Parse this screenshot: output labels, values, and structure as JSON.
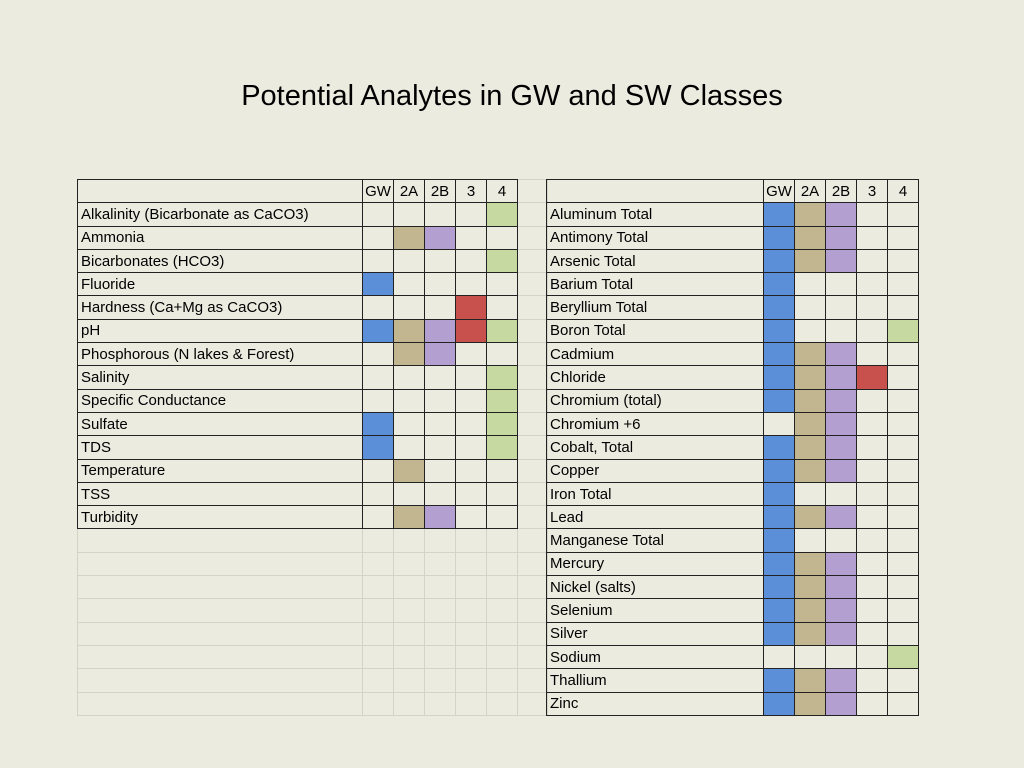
{
  "title": "Potential Analytes in GW and SW Classes",
  "columns": [
    "GW",
    "2A",
    "2B",
    "3",
    "4"
  ],
  "colors": {
    "GW": "#5b8fd8",
    "2A": "#c1b68f",
    "2B": "#b3a0d0",
    "3": "#c9514d",
    "4": "#c6d9a0"
  },
  "left_table": {
    "rows": [
      {
        "name": "Alkalinity (Bicarbonate as CaCO3)",
        "classes": [
          "4"
        ]
      },
      {
        "name": "Ammonia",
        "classes": [
          "2A",
          "2B"
        ]
      },
      {
        "name": "Bicarbonates (HCO3)",
        "classes": [
          "4"
        ]
      },
      {
        "name": "Fluoride",
        "classes": [
          "GW"
        ]
      },
      {
        "name": "Hardness (Ca+Mg as CaCO3)",
        "classes": [
          "3"
        ]
      },
      {
        "name": "pH",
        "classes": [
          "GW",
          "2A",
          "2B",
          "3",
          "4"
        ]
      },
      {
        "name": "Phosphorous (N lakes & Forest)",
        "classes": [
          "2A",
          "2B"
        ]
      },
      {
        "name": "Salinity",
        "classes": [
          "4"
        ]
      },
      {
        "name": "Specific Conductance",
        "classes": [
          "4"
        ]
      },
      {
        "name": "Sulfate",
        "classes": [
          "GW",
          "4"
        ]
      },
      {
        "name": "TDS",
        "classes": [
          "GW",
          "4"
        ]
      },
      {
        "name": "Temperature",
        "classes": [
          "2A"
        ]
      },
      {
        "name": "TSS",
        "classes": []
      },
      {
        "name": "Turbidity",
        "classes": [
          "2A",
          "2B"
        ]
      }
    ]
  },
  "right_table": {
    "rows": [
      {
        "name": "Aluminum Total",
        "classes": [
          "GW",
          "2A",
          "2B"
        ]
      },
      {
        "name": "Antimony Total",
        "classes": [
          "GW",
          "2A",
          "2B"
        ]
      },
      {
        "name": "Arsenic Total",
        "classes": [
          "GW",
          "2A",
          "2B"
        ]
      },
      {
        "name": "Barium Total",
        "classes": [
          "GW"
        ]
      },
      {
        "name": "Beryllium Total",
        "classes": [
          "GW"
        ]
      },
      {
        "name": "Boron Total",
        "classes": [
          "GW",
          "4"
        ]
      },
      {
        "name": "Cadmium",
        "classes": [
          "GW",
          "2A",
          "2B"
        ]
      },
      {
        "name": "Chloride",
        "classes": [
          "GW",
          "2A",
          "2B",
          "3"
        ]
      },
      {
        "name": "Chromium (total)",
        "classes": [
          "GW",
          "2A",
          "2B"
        ]
      },
      {
        "name": "Chromium +6",
        "classes": [
          "2A",
          "2B"
        ]
      },
      {
        "name": "Cobalt, Total",
        "classes": [
          "GW",
          "2A",
          "2B"
        ]
      },
      {
        "name": "Copper",
        "classes": [
          "GW",
          "2A",
          "2B"
        ]
      },
      {
        "name": "Iron Total",
        "classes": [
          "GW"
        ]
      },
      {
        "name": "Lead",
        "classes": [
          "GW",
          "2A",
          "2B"
        ]
      },
      {
        "name": "Manganese Total",
        "classes": [
          "GW"
        ]
      },
      {
        "name": "Mercury",
        "classes": [
          "GW",
          "2A",
          "2B"
        ]
      },
      {
        "name": "Nickel (salts)",
        "classes": [
          "GW",
          "2A",
          "2B"
        ]
      },
      {
        "name": "Selenium",
        "classes": [
          "GW",
          "2A",
          "2B"
        ]
      },
      {
        "name": "Silver",
        "classes": [
          "GW",
          "2A",
          "2B"
        ]
      },
      {
        "name": "Sodium",
        "classes": [
          "4"
        ]
      },
      {
        "name": "Thallium",
        "classes": [
          "GW",
          "2A",
          "2B"
        ]
      },
      {
        "name": "Zinc",
        "classes": [
          "GW",
          "2A",
          "2B"
        ]
      }
    ]
  }
}
